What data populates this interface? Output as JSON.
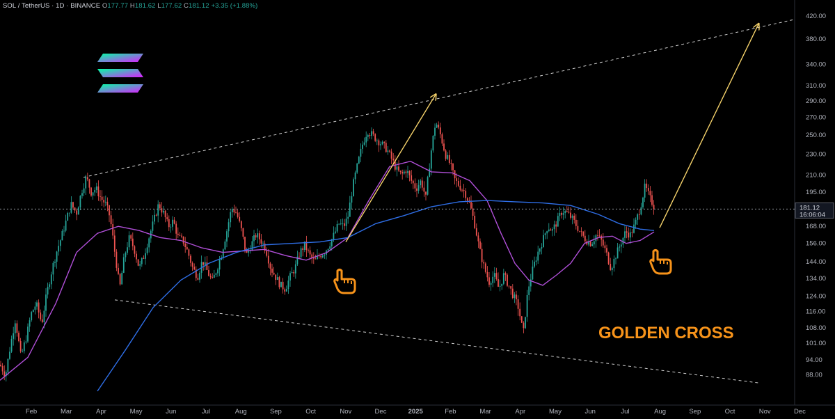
{
  "header": {
    "symbol": "SOL / TetherUS · 1D · BINANCE",
    "open_label": "O",
    "open": "177.77",
    "high_label": "H",
    "high": "181.62",
    "low_label": "L",
    "low": "177.62",
    "close_label": "C",
    "close": "181.12",
    "change": "+3.35 (+1.88%)"
  },
  "price_tag": {
    "price": "181.12",
    "countdown": "16:06:04"
  },
  "annotation": {
    "text": "GOLDEN CROSS"
  },
  "colors": {
    "background": "#000000",
    "up": "#26a69a",
    "down": "#ef5350",
    "ma_short": "#b04fd8",
    "ma_long": "#2f6fe8",
    "arrow": "#f5d26b",
    "annotation": "#f7931a"
  },
  "icons": [
    "solana-logo-icon",
    "pointing-hand-icon"
  ],
  "chart_data": {
    "type": "candlestick",
    "title": "SOL / TetherUS · 1D · BINANCE",
    "scale": "log",
    "ylim": [
      82,
      430
    ],
    "y_ticks": [
      "420.00",
      "380.00",
      "340.00",
      "310.00",
      "290.00",
      "270.00",
      "250.00",
      "230.00",
      "210.00",
      "195.00",
      "181.12",
      "168.00",
      "156.00",
      "144.00",
      "134.00",
      "124.00",
      "116.00",
      "108.00",
      "101.00",
      "94.00",
      "88.00"
    ],
    "x_ticks": [
      "Feb",
      "Mar",
      "Apr",
      "May",
      "Jun",
      "Jul",
      "Aug",
      "Sep",
      "Oct",
      "Nov",
      "Dec",
      "2025",
      "Feb",
      "Mar",
      "Apr",
      "May",
      "Jun",
      "Jul",
      "Aug",
      "Sep",
      "Oct",
      "Nov",
      "Dec"
    ],
    "price_path": [
      [
        0,
        92
      ],
      [
        8,
        88
      ],
      [
        15,
        100
      ],
      [
        22,
        112
      ],
      [
        30,
        95
      ],
      [
        38,
        104
      ],
      [
        45,
        115
      ],
      [
        52,
        120
      ],
      [
        60,
        110
      ],
      [
        67,
        125
      ],
      [
        74,
        138
      ],
      [
        81,
        150
      ],
      [
        88,
        160
      ],
      [
        95,
        172
      ],
      [
        102,
        185
      ],
      [
        110,
        178
      ],
      [
        117,
        195
      ],
      [
        124,
        208
      ],
      [
        131,
        195
      ],
      [
        138,
        198
      ],
      [
        145,
        190
      ],
      [
        152,
        185
      ],
      [
        158,
        175
      ],
      [
        165,
        150
      ],
      [
        172,
        128
      ],
      [
        179,
        148
      ],
      [
        186,
        160
      ],
      [
        193,
        152
      ],
      [
        200,
        140
      ],
      [
        207,
        148
      ],
      [
        214,
        160
      ],
      [
        221,
        172
      ],
      [
        228,
        185
      ],
      [
        235,
        178
      ],
      [
        242,
        168
      ],
      [
        249,
        172
      ],
      [
        256,
        160
      ],
      [
        263,
        158
      ],
      [
        270,
        150
      ],
      [
        277,
        140
      ],
      [
        284,
        135
      ],
      [
        291,
        145
      ],
      [
        298,
        138
      ],
      [
        305,
        132
      ],
      [
        312,
        140
      ],
      [
        319,
        150
      ],
      [
        326,
        165
      ],
      [
        333,
        182
      ],
      [
        340,
        178
      ],
      [
        347,
        165
      ],
      [
        354,
        148
      ],
      [
        361,
        155
      ],
      [
        368,
        162
      ],
      [
        375,
        158
      ],
      [
        382,
        152
      ],
      [
        389,
        140
      ],
      [
        396,
        135
      ],
      [
        403,
        130
      ],
      [
        410,
        128
      ],
      [
        417,
        135
      ],
      [
        424,
        140
      ],
      [
        431,
        150
      ],
      [
        438,
        155
      ],
      [
        445,
        148
      ],
      [
        452,
        144
      ],
      [
        459,
        148
      ],
      [
        466,
        150
      ],
      [
        473,
        155
      ],
      [
        480,
        162
      ],
      [
        487,
        170
      ],
      [
        494,
        168
      ],
      [
        500,
        175
      ],
      [
        507,
        200
      ],
      [
        514,
        220
      ],
      [
        521,
        240
      ],
      [
        528,
        255
      ],
      [
        535,
        250
      ],
      [
        542,
        245
      ],
      [
        549,
        240
      ],
      [
        556,
        235
      ],
      [
        563,
        225
      ],
      [
        570,
        215
      ],
      [
        577,
        210
      ],
      [
        584,
        215
      ],
      [
        591,
        205
      ],
      [
        598,
        198
      ],
      [
        605,
        205
      ],
      [
        612,
        190
      ],
      [
        619,
        230
      ],
      [
        626,
        265
      ],
      [
        633,
        250
      ],
      [
        640,
        230
      ],
      [
        647,
        220
      ],
      [
        654,
        205
      ],
      [
        661,
        200
      ],
      [
        668,
        195
      ],
      [
        675,
        185
      ],
      [
        682,
        170
      ],
      [
        689,
        152
      ],
      [
        696,
        140
      ],
      [
        703,
        132
      ],
      [
        710,
        136
      ],
      [
        717,
        128
      ],
      [
        724,
        136
      ],
      [
        731,
        130
      ],
      [
        738,
        124
      ],
      [
        745,
        118
      ],
      [
        752,
        105
      ],
      [
        759,
        128
      ],
      [
        766,
        140
      ],
      [
        773,
        150
      ],
      [
        780,
        158
      ],
      [
        787,
        168
      ],
      [
        794,
        165
      ],
      [
        801,
        172
      ],
      [
        808,
        180
      ],
      [
        815,
        178
      ],
      [
        822,
        174
      ],
      [
        829,
        168
      ],
      [
        836,
        162
      ],
      [
        843,
        158
      ],
      [
        850,
        156
      ],
      [
        857,
        162
      ],
      [
        864,
        158
      ],
      [
        871,
        150
      ],
      [
        878,
        140
      ],
      [
        885,
        148
      ],
      [
        892,
        156
      ],
      [
        899,
        164
      ],
      [
        906,
        162
      ],
      [
        913,
        170
      ],
      [
        920,
        182
      ],
      [
        927,
        200
      ],
      [
        934,
        190
      ],
      [
        941,
        182
      ]
    ],
    "series": [
      {
        "name": "",
        "values": [
          [
            0,
            86
          ],
          [
            40,
            95
          ],
          [
            80,
            120
          ],
          [
            110,
            150
          ],
          [
            140,
            163
          ],
          [
            170,
            168
          ],
          [
            200,
            165
          ],
          [
            230,
            160
          ],
          [
            260,
            158
          ],
          [
            290,
            153
          ],
          [
            320,
            150
          ],
          [
            350,
            151
          ],
          [
            380,
            152
          ],
          [
            410,
            148
          ],
          [
            440,
            145
          ],
          [
            470,
            150
          ],
          [
            500,
            160
          ],
          [
            530,
            188
          ],
          [
            560,
            218
          ],
          [
            590,
            223
          ],
          [
            620,
            213
          ],
          [
            650,
            212
          ],
          [
            675,
            205
          ],
          [
            700,
            188
          ],
          [
            720,
            163
          ],
          [
            740,
            143
          ],
          [
            760,
            133
          ],
          [
            780,
            130
          ],
          [
            800,
            136
          ],
          [
            820,
            143
          ],
          [
            840,
            156
          ],
          [
            860,
            160
          ],
          [
            880,
            161
          ],
          [
            900,
            156
          ],
          [
            920,
            158
          ],
          [
            940,
            164
          ]
        ]
      },
      {
        "name": "",
        "values": [
          [
            140,
            82
          ],
          [
            180,
            98
          ],
          [
            220,
            118
          ],
          [
            260,
            133
          ],
          [
            300,
            143
          ],
          [
            340,
            150
          ],
          [
            380,
            155
          ],
          [
            420,
            156
          ],
          [
            460,
            157
          ],
          [
            500,
            160
          ],
          [
            540,
            170
          ],
          [
            580,
            176
          ],
          [
            620,
            183
          ],
          [
            660,
            187
          ],
          [
            700,
            188
          ],
          [
            740,
            187
          ],
          [
            780,
            186
          ],
          [
            820,
            184
          ],
          [
            860,
            177
          ],
          [
            890,
            170
          ],
          [
            920,
            166
          ],
          [
            940,
            165
          ]
        ]
      }
    ],
    "trend_lines": [
      {
        "from": [
          120,
          208
        ],
        "to": [
          1200,
          430
        ],
        "style": "dashed"
      },
      {
        "from": [
          165,
          122
        ],
        "to": [
          1090,
          85
        ],
        "style": "dashed"
      }
    ],
    "arrows": [
      {
        "from": [
          497,
          157
        ],
        "to": [
          626,
          298
        ]
      },
      {
        "from": [
          948,
          167
        ],
        "to": [
          1090,
          405
        ]
      }
    ]
  }
}
